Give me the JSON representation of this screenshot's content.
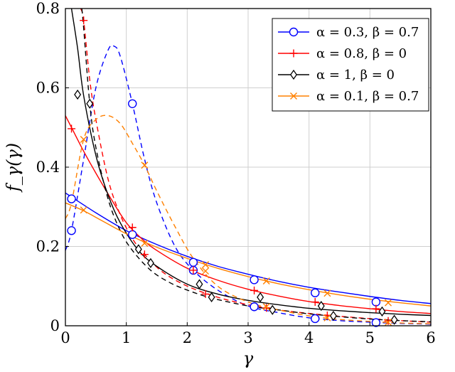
{
  "chart_data": {
    "type": "line",
    "title": "",
    "xlabel": "γ",
    "ylabel": "f_γ(γ)",
    "xlim": [
      0,
      6
    ],
    "ylim": [
      0,
      0.8
    ],
    "xticks": [
      "0",
      "1",
      "2",
      "3",
      "4",
      "5",
      "6"
    ],
    "yticks": [
      "0",
      "0.2",
      "0.4",
      "0.6",
      "0.8"
    ],
    "grid": true,
    "legend_position": "top-right",
    "series": [
      {
        "name": "α = 0.3, β = 0.7",
        "color": "#0000ff",
        "marker": "circle",
        "solid": {
          "x": [
            0,
            0.5,
            1,
            1.5,
            2,
            2.5,
            3,
            3.5,
            4,
            4.5,
            5,
            5.5,
            6
          ],
          "y": [
            0.335,
            0.285,
            0.24,
            0.205,
            0.175,
            0.15,
            0.13,
            0.112,
            0.097,
            0.085,
            0.074,
            0.064,
            0.056
          ],
          "markers_x": [
            0.1,
            1.1,
            2.1,
            3.1,
            4.1,
            5.1
          ],
          "markers_y": [
            0.32,
            0.23,
            0.16,
            0.116,
            0.083,
            0.06
          ]
        },
        "dashed": {
          "x": [
            0,
            0.1,
            0.3,
            0.5,
            0.7,
            0.8,
            0.9,
            1.1,
            1.3,
            1.5,
            1.8,
            2.1,
            2.5,
            3,
            3.5,
            4,
            4.5,
            5,
            5.5,
            6
          ],
          "y": [
            0.19,
            0.24,
            0.42,
            0.6,
            0.695,
            0.705,
            0.68,
            0.56,
            0.42,
            0.31,
            0.2,
            0.14,
            0.09,
            0.05,
            0.033,
            0.02,
            0.013,
            0.009,
            0.006,
            0.004
          ],
          "markers_x": [
            0.1,
            1.1,
            2.1,
            3.1,
            4.1,
            5.1
          ],
          "markers_y": [
            0.24,
            0.56,
            0.14,
            0.048,
            0.018,
            0.008
          ]
        }
      },
      {
        "name": "α = 0.8, β = 0",
        "color": "#ff0000",
        "marker": "plus",
        "solid": {
          "x": [
            0,
            0.1,
            0.3,
            0.5,
            0.75,
            1,
            1.25,
            1.5,
            2,
            2.5,
            3,
            3.5,
            4,
            4.5,
            5,
            5.5,
            6
          ],
          "y": [
            0.53,
            0.5,
            0.44,
            0.385,
            0.32,
            0.26,
            0.22,
            0.19,
            0.145,
            0.115,
            0.092,
            0.075,
            0.061,
            0.051,
            0.043,
            0.036,
            0.031
          ],
          "markers_x": [
            0.1,
            1.1,
            2.1,
            3.1,
            4.1,
            5.1
          ],
          "markers_y": [
            0.497,
            0.248,
            0.14,
            0.089,
            0.06,
            0.043
          ]
        },
        "dashed": {
          "x": [
            0.25,
            0.3,
            0.4,
            0.5,
            0.7,
            0.9,
            1.1,
            1.3,
            1.6,
            2,
            2.5,
            3,
            3.5,
            4,
            4.5,
            5,
            5.5,
            6
          ],
          "y": [
            0.8,
            0.77,
            0.62,
            0.52,
            0.37,
            0.28,
            0.22,
            0.18,
            0.135,
            0.1,
            0.072,
            0.053,
            0.04,
            0.031,
            0.024,
            0.018,
            0.013,
            0.009
          ],
          "markers_x": [
            0.3,
            1.3,
            2.3,
            3.3,
            4.3,
            5.3
          ],
          "markers_y": [
            0.77,
            0.18,
            0.08,
            0.045,
            0.026,
            0.012
          ]
        }
      },
      {
        "name": "α = 1, β = 0",
        "color": "#000000",
        "marker": "diamond",
        "solid": {
          "x": [
            0.1,
            0.2,
            0.3,
            0.5,
            0.7,
            0.9,
            1.2,
            1.5,
            2,
            2.5,
            3,
            3.5,
            4,
            4.5,
            5,
            5.5,
            6
          ],
          "y": [
            0.8,
            0.7,
            0.58,
            0.43,
            0.33,
            0.26,
            0.19,
            0.15,
            0.105,
            0.08,
            0.064,
            0.053,
            0.044,
            0.038,
            0.033,
            0.029,
            0.026
          ],
          "markers_x": [
            0.2,
            1.2,
            2.2,
            3.2,
            4.2,
            5.2
          ],
          "markers_y": [
            0.583,
            0.193,
            0.105,
            0.072,
            0.05,
            0.036
          ]
        },
        "dashed": {
          "x": [
            0.27,
            0.3,
            0.4,
            0.5,
            0.7,
            0.9,
            1.1,
            1.4,
            1.7,
            2,
            2.4,
            3,
            3.5,
            4,
            4.5,
            5,
            5.5,
            6
          ],
          "y": [
            0.8,
            0.75,
            0.56,
            0.45,
            0.32,
            0.24,
            0.19,
            0.14,
            0.11,
            0.09,
            0.07,
            0.05,
            0.04,
            0.03,
            0.023,
            0.017,
            0.013,
            0.01
          ],
          "markers_x": [
            0.4,
            1.4,
            2.4,
            3.4,
            4.4,
            5.4
          ],
          "markers_y": [
            0.56,
            0.158,
            0.072,
            0.04,
            0.025,
            0.015
          ]
        }
      },
      {
        "name": "α = 0.1, β = 0.7",
        "color": "#ff8000",
        "marker": "cross",
        "solid": {
          "x": [
            0,
            0.3,
            0.6,
            1,
            1.5,
            2,
            2.5,
            3,
            3.5,
            4,
            4.5,
            5,
            5.5,
            6
          ],
          "y": [
            0.31,
            0.29,
            0.265,
            0.232,
            0.198,
            0.17,
            0.145,
            0.124,
            0.106,
            0.091,
            0.078,
            0.067,
            0.058,
            0.05
          ],
          "markers_x": [
            0.3,
            1.3,
            2.3,
            3.3,
            4.3,
            5.3
          ],
          "markers_y": [
            0.292,
            0.208,
            0.154,
            0.113,
            0.082,
            0.058
          ]
        },
        "dashed": {
          "x": [
            0,
            0.1,
            0.3,
            0.5,
            0.7,
            0.9,
            1.1,
            1.3,
            1.5,
            1.8,
            2.1,
            2.5,
            3,
            3.5,
            4,
            4.5,
            5,
            5.5,
            6
          ],
          "y": [
            0.27,
            0.31,
            0.47,
            0.52,
            0.53,
            0.51,
            0.46,
            0.405,
            0.34,
            0.25,
            0.17,
            0.1,
            0.06,
            0.04,
            0.025,
            0.016,
            0.011,
            0.007,
            0.005
          ],
          "markers_x": [
            0.3,
            1.3,
            2.3,
            3.3,
            4.3,
            5.3
          ],
          "markers_y": [
            0.47,
            0.405,
            0.138,
            0.048,
            0.02,
            0.009
          ]
        }
      }
    ]
  }
}
